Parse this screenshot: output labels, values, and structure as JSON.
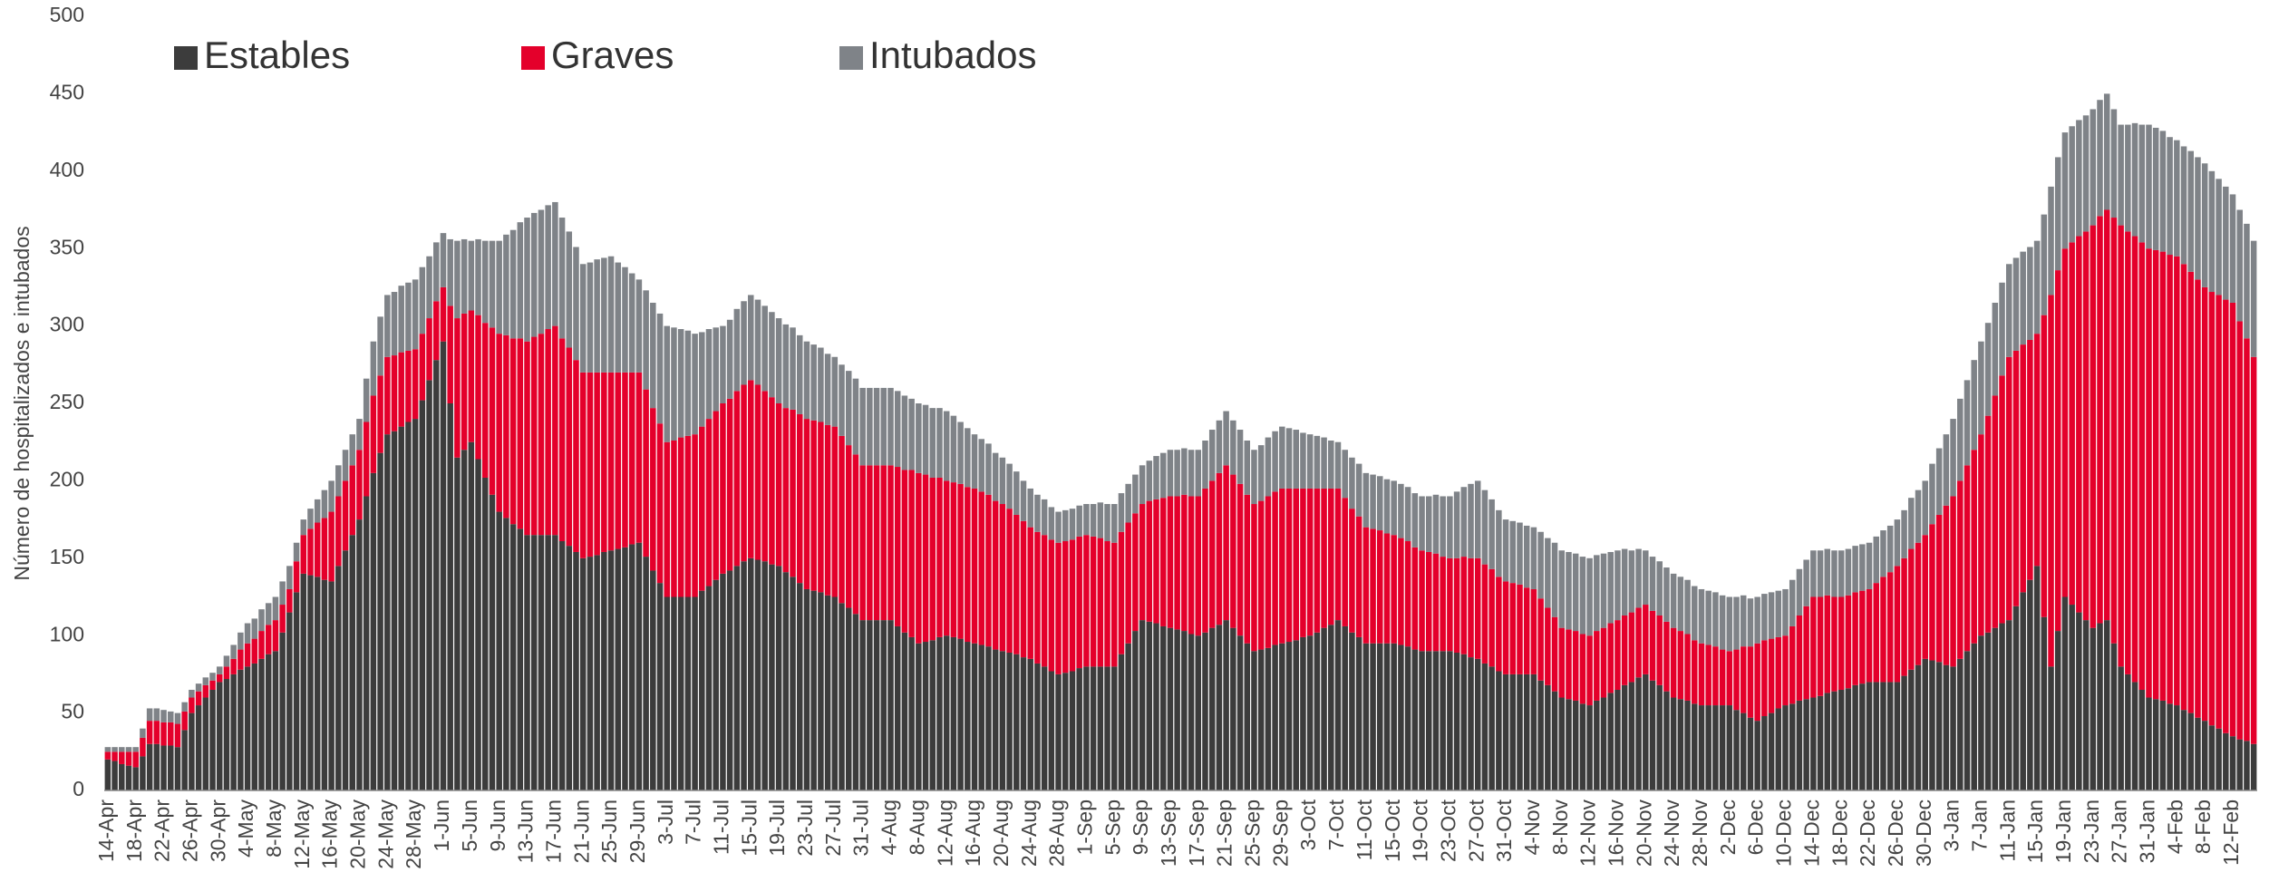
{
  "chart_data": {
    "type": "stacked_bar",
    "y_label": "Número de hospitalizados e intubados",
    "ylim": [
      0,
      500
    ],
    "yticks": [
      0,
      50,
      100,
      150,
      200,
      250,
      300,
      350,
      400,
      450,
      500
    ],
    "grid": false,
    "legend": "top-left",
    "categories": [
      "14-Apr",
      null,
      null,
      null,
      "18-Apr",
      null,
      null,
      null,
      "22-Apr",
      null,
      null,
      null,
      "26-Apr",
      null,
      null,
      null,
      "30-Apr",
      null,
      null,
      null,
      "4-May",
      null,
      null,
      null,
      "8-May",
      null,
      null,
      null,
      "12-May",
      null,
      null,
      null,
      "16-May",
      null,
      null,
      null,
      "20-May",
      null,
      null,
      null,
      "24-May",
      null,
      null,
      null,
      "28-May",
      null,
      null,
      null,
      "1-Jun",
      null,
      null,
      null,
      "5-Jun",
      null,
      null,
      null,
      "9-Jun",
      null,
      null,
      null,
      "13-Jun",
      null,
      null,
      null,
      "17-Jun",
      null,
      null,
      null,
      "21-Jun",
      null,
      null,
      null,
      "25-Jun",
      null,
      null,
      null,
      "29-Jun",
      null,
      null,
      null,
      "3-Jul",
      null,
      null,
      null,
      "7-Jul",
      null,
      null,
      null,
      "11-Jul",
      null,
      null,
      null,
      "15-Jul",
      null,
      null,
      null,
      "19-Jul",
      null,
      null,
      null,
      "23-Jul",
      null,
      null,
      null,
      "27-Jul",
      null,
      null,
      null,
      "31-Jul",
      null,
      null,
      null,
      "4-Aug",
      null,
      null,
      null,
      "8-Aug",
      null,
      null,
      null,
      "12-Aug",
      null,
      null,
      null,
      "16-Aug",
      null,
      null,
      null,
      "20-Aug",
      null,
      null,
      null,
      "24-Aug",
      null,
      null,
      null,
      "28-Aug",
      null,
      null,
      null,
      "1-Sep",
      null,
      null,
      null,
      "5-Sep",
      null,
      null,
      null,
      "9-Sep",
      null,
      null,
      null,
      "13-Sep",
      null,
      null,
      null,
      "17-Sep",
      null,
      null,
      null,
      "21-Sep",
      null,
      null,
      null,
      "25-Sep",
      null,
      null,
      null,
      "29-Sep",
      null,
      null,
      null,
      "3-Oct",
      null,
      null,
      null,
      "7-Oct",
      null,
      null,
      null,
      "11-Oct",
      null,
      null,
      null,
      "15-Oct",
      null,
      null,
      null,
      "19-Oct",
      null,
      null,
      null,
      "23-Oct",
      null,
      null,
      null,
      "27-Oct",
      null,
      null,
      null,
      "31-Oct",
      null,
      null,
      null,
      "4-Nov",
      null,
      null,
      null,
      "8-Nov",
      null,
      null,
      null,
      "12-Nov",
      null,
      null,
      null,
      "16-Nov",
      null,
      null,
      null,
      "20-Nov",
      null,
      null,
      null,
      "24-Nov",
      null,
      null,
      null,
      "28-Nov",
      null,
      null,
      null,
      "2-Dec",
      null,
      null,
      null,
      "6-Dec",
      null,
      null,
      null,
      "10-Dec",
      null,
      null,
      null,
      "14-Dec",
      null,
      null,
      null,
      "18-Dec",
      null,
      null,
      null,
      "22-Dec",
      null,
      null,
      null,
      "26-Dec",
      null,
      null,
      null,
      "30-Dec",
      null,
      null,
      null,
      "3-Jan",
      null,
      null,
      null,
      "7-Jan",
      null,
      null,
      null,
      "11-Jan",
      null,
      null,
      null,
      "15-Jan",
      null,
      null,
      null,
      "19-Jan",
      null,
      null,
      null,
      "23-Jan",
      null,
      null,
      null,
      "27-Jan",
      null,
      null,
      null,
      "31-Jan",
      null,
      null,
      null,
      "4-Feb",
      null,
      null,
      null,
      "8-Feb",
      null,
      null,
      null,
      "12-Feb",
      null,
      null,
      null
    ],
    "series": [
      {
        "name": "Estables",
        "color": "#3c3c3c",
        "values": [
          20,
          19,
          17,
          16,
          15,
          22,
          30,
          30,
          29,
          29,
          28,
          39,
          50,
          55,
          60,
          65,
          70,
          72,
          75,
          78,
          80,
          82,
          85,
          88,
          90,
          102,
          115,
          128,
          140,
          139,
          138,
          136,
          135,
          145,
          155,
          165,
          175,
          190,
          205,
          218,
          230,
          232,
          235,
          238,
          240,
          252,
          265,
          278,
          290,
          250,
          215,
          220,
          225,
          214,
          202,
          191,
          180,
          176,
          172,
          169,
          165,
          165,
          165,
          165,
          165,
          161,
          158,
          154,
          150,
          151,
          152,
          154,
          155,
          156,
          157,
          159,
          160,
          151,
          142,
          134,
          125,
          125,
          125,
          125,
          125,
          129,
          132,
          136,
          140,
          142,
          145,
          148,
          150,
          149,
          148,
          146,
          145,
          141,
          138,
          134,
          130,
          129,
          128,
          126,
          125,
          121,
          118,
          114,
          110,
          110,
          110,
          110,
          110,
          106,
          102,
          99,
          95,
          96,
          97,
          99,
          100,
          99,
          98,
          96,
          95,
          94,
          93,
          91,
          90,
          89,
          88,
          86,
          85,
          82,
          80,
          77,
          75,
          76,
          77,
          79,
          80,
          80,
          80,
          80,
          80,
          88,
          95,
          103,
          110,
          109,
          108,
          106,
          105,
          104,
          103,
          101,
          100,
          102,
          105,
          107,
          110,
          105,
          100,
          95,
          90,
          91,
          92,
          94,
          95,
          96,
          97,
          99,
          100,
          102,
          105,
          107,
          110,
          106,
          102,
          99,
          95,
          95,
          95,
          95,
          95,
          94,
          93,
          91,
          90,
          90,
          90,
          90,
          90,
          89,
          88,
          86,
          85,
          82,
          80,
          77,
          75,
          75,
          75,
          75,
          75,
          71,
          68,
          64,
          60,
          59,
          58,
          56,
          55,
          58,
          60,
          63,
          65,
          68,
          70,
          73,
          75,
          71,
          68,
          64,
          60,
          59,
          58,
          56,
          55,
          55,
          55,
          55,
          55,
          52,
          50,
          47,
          45,
          48,
          50,
          53,
          55,
          56,
          58,
          59,
          60,
          61,
          63,
          64,
          65,
          66,
          68,
          69,
          70,
          70,
          70,
          70,
          70,
          74,
          78,
          81,
          85,
          84,
          83,
          81,
          80,
          85,
          90,
          95,
          100,
          102,
          105,
          108,
          110,
          119,
          128,
          136,
          145,
          112,
          80,
          103,
          125,
          120,
          115,
          110,
          105,
          108,
          110,
          95,
          80,
          75,
          70,
          65,
          60,
          59,
          58,
          56,
          55,
          52,
          50,
          47,
          45,
          42,
          40,
          37,
          35,
          33,
          32,
          30
        ]
      },
      {
        "name": "Graves",
        "color": "#e4002b",
        "values": [
          5,
          6,
          8,
          9,
          10,
          12,
          15,
          15,
          15,
          15,
          15,
          12,
          10,
          9,
          8,
          6,
          5,
          8,
          10,
          13,
          15,
          16,
          18,
          19,
          20,
          18,
          15,
          20,
          25,
          30,
          35,
          40,
          45,
          45,
          45,
          45,
          45,
          48,
          50,
          50,
          50,
          49,
          48,
          46,
          45,
          43,
          40,
          38,
          35,
          63,
          90,
          88,
          85,
          93,
          100,
          108,
          115,
          118,
          120,
          123,
          125,
          128,
          130,
          133,
          135,
          131,
          128,
          124,
          120,
          119,
          118,
          116,
          115,
          114,
          113,
          111,
          110,
          108,
          105,
          103,
          100,
          101,
          103,
          104,
          105,
          106,
          108,
          109,
          110,
          111,
          113,
          114,
          115,
          113,
          110,
          108,
          105,
          106,
          108,
          109,
          110,
          110,
          110,
          110,
          110,
          108,
          105,
          103,
          100,
          100,
          100,
          100,
          100,
          103,
          105,
          108,
          110,
          108,
          105,
          103,
          100,
          100,
          100,
          100,
          100,
          99,
          98,
          96,
          95,
          93,
          90,
          88,
          85,
          85,
          85,
          85,
          85,
          85,
          85,
          85,
          85,
          84,
          83,
          81,
          80,
          79,
          78,
          76,
          75,
          78,
          80,
          83,
          85,
          86,
          88,
          89,
          90,
          93,
          95,
          98,
          100,
          99,
          98,
          96,
          95,
          96,
          98,
          99,
          100,
          99,
          98,
          96,
          95,
          93,
          90,
          88,
          85,
          83,
          80,
          78,
          75,
          74,
          73,
          71,
          70,
          69,
          68,
          66,
          65,
          64,
          63,
          61,
          60,
          61,
          63,
          64,
          65,
          64,
          63,
          61,
          60,
          59,
          58,
          56,
          55,
          53,
          50,
          48,
          45,
          45,
          45,
          45,
          45,
          45,
          45,
          45,
          45,
          45,
          45,
          45,
          45,
          45,
          45,
          45,
          45,
          44,
          43,
          41,
          40,
          39,
          38,
          36,
          35,
          39,
          43,
          46,
          50,
          49,
          48,
          46,
          45,
          50,
          55,
          60,
          65,
          64,
          63,
          61,
          60,
          60,
          60,
          60,
          60,
          64,
          68,
          71,
          75,
          76,
          78,
          79,
          80,
          88,
          95,
          103,
          110,
          115,
          120,
          125,
          130,
          140,
          150,
          160,
          170,
          165,
          160,
          155,
          150,
          195,
          240,
          233,
          225,
          234,
          243,
          251,
          260,
          263,
          265,
          275,
          285,
          286,
          288,
          289,
          290,
          290,
          290,
          290,
          290,
          288,
          285,
          283,
          280,
          280,
          280,
          280,
          280,
          270,
          260,
          250
        ]
      },
      {
        "name": "Intubados",
        "color": "#7f8388",
        "values": [
          3,
          3,
          3,
          3,
          3,
          6,
          8,
          8,
          8,
          7,
          7,
          6,
          5,
          5,
          5,
          5,
          5,
          7,
          9,
          11,
          13,
          13,
          14,
          14,
          15,
          15,
          15,
          12,
          10,
          13,
          15,
          18,
          20,
          20,
          20,
          20,
          20,
          28,
          35,
          38,
          40,
          41,
          43,
          44,
          45,
          43,
          40,
          38,
          35,
          43,
          50,
          48,
          45,
          49,
          53,
          56,
          60,
          65,
          70,
          75,
          80,
          80,
          80,
          80,
          80,
          78,
          75,
          73,
          70,
          71,
          73,
          74,
          75,
          71,
          68,
          64,
          60,
          64,
          68,
          71,
          75,
          73,
          70,
          68,
          65,
          61,
          58,
          54,
          50,
          51,
          53,
          54,
          55,
          55,
          55,
          55,
          55,
          54,
          53,
          51,
          50,
          49,
          48,
          46,
          45,
          46,
          48,
          49,
          50,
          50,
          50,
          50,
          50,
          49,
          48,
          46,
          45,
          45,
          45,
          45,
          45,
          43,
          40,
          38,
          35,
          34,
          33,
          31,
          30,
          29,
          28,
          26,
          25,
          24,
          23,
          21,
          20,
          20,
          20,
          20,
          20,
          21,
          23,
          24,
          25,
          25,
          25,
          25,
          25,
          26,
          28,
          29,
          30,
          30,
          30,
          30,
          30,
          31,
          33,
          34,
          35,
          35,
          35,
          35,
          35,
          36,
          38,
          39,
          40,
          39,
          38,
          36,
          35,
          34,
          33,
          31,
          30,
          31,
          33,
          34,
          35,
          35,
          35,
          35,
          35,
          35,
          35,
          35,
          35,
          36,
          38,
          39,
          40,
          43,
          45,
          48,
          50,
          48,
          45,
          43,
          40,
          40,
          40,
          40,
          40,
          43,
          45,
          48,
          50,
          50,
          50,
          50,
          50,
          49,
          48,
          46,
          45,
          43,
          40,
          38,
          35,
          35,
          35,
          35,
          35,
          35,
          35,
          35,
          35,
          35,
          35,
          35,
          35,
          34,
          33,
          31,
          30,
          30,
          30,
          30,
          30,
          30,
          30,
          30,
          30,
          30,
          30,
          30,
          30,
          30,
          30,
          30,
          30,
          30,
          30,
          30,
          30,
          31,
          33,
          34,
          35,
          39,
          43,
          46,
          50,
          53,
          55,
          58,
          60,
          60,
          60,
          60,
          60,
          60,
          60,
          60,
          60,
          65,
          70,
          73,
          75,
          75,
          75,
          75,
          75,
          75,
          75,
          70,
          65,
          69,
          73,
          76,
          80,
          79,
          78,
          76,
          75,
          76,
          78,
          79,
          80,
          78,
          75,
          73,
          70,
          72,
          74,
          75
        ]
      }
    ]
  }
}
